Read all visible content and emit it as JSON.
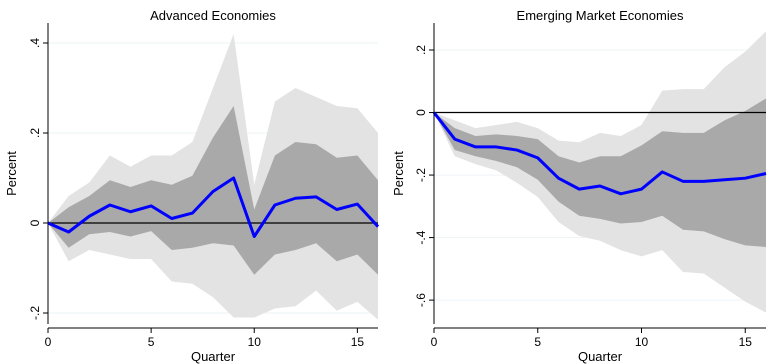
{
  "chart_data": [
    {
      "type": "line",
      "title": "Advanced Economies",
      "xlabel": "Quarter",
      "ylabel": "Percent",
      "xlim": [
        0,
        16
      ],
      "ylim": [
        -0.22,
        0.44
      ],
      "xticks": [
        0,
        5,
        10,
        15
      ],
      "xtick_labels": [
        "0",
        "5",
        "10",
        "15"
      ],
      "yticks": [
        -0.2,
        0,
        0.2,
        0.4
      ],
      "ytick_labels": [
        "-.2",
        "0",
        ".2",
        ".4"
      ],
      "grid": true,
      "x": [
        0,
        1,
        2,
        3,
        4,
        5,
        6,
        7,
        8,
        9,
        10,
        11,
        12,
        13,
        14,
        15,
        16
      ],
      "series": [
        {
          "role": "estimate",
          "color": "#0000ff",
          "values": [
            0,
            -0.02,
            0.015,
            0.04,
            0.025,
            0.038,
            0.01,
            0.022,
            0.07,
            0.1,
            -0.03,
            0.04,
            0.055,
            0.058,
            0.03,
            0.042,
            -0.008
          ]
        },
        {
          "role": "band_inner_upper",
          "color": "#a9a9a9",
          "values": [
            0,
            0.035,
            0.06,
            0.095,
            0.08,
            0.095,
            0.085,
            0.105,
            0.19,
            0.26,
            0.03,
            0.15,
            0.18,
            0.175,
            0.145,
            0.15,
            0.095
          ]
        },
        {
          "role": "band_inner_lower",
          "color": "#a9a9a9",
          "values": [
            0,
            -0.055,
            -0.025,
            -0.02,
            -0.03,
            -0.018,
            -0.06,
            -0.055,
            -0.045,
            -0.05,
            -0.115,
            -0.07,
            -0.06,
            -0.045,
            -0.085,
            -0.07,
            -0.115
          ]
        },
        {
          "role": "band_outer_upper",
          "color": "#e3e3e3",
          "values": [
            0,
            0.06,
            0.09,
            0.15,
            0.125,
            0.15,
            0.15,
            0.18,
            0.3,
            0.42,
            0.085,
            0.27,
            0.3,
            0.28,
            0.26,
            0.255,
            0.2
          ]
        },
        {
          "role": "band_outer_lower",
          "color": "#e3e3e3",
          "values": [
            0,
            -0.085,
            -0.06,
            -0.07,
            -0.08,
            -0.08,
            -0.13,
            -0.135,
            -0.165,
            -0.21,
            -0.21,
            -0.19,
            -0.185,
            -0.15,
            -0.195,
            -0.175,
            -0.215
          ]
        }
      ],
      "zero_line": 0
    },
    {
      "type": "line",
      "title": "Emerging Market Economies",
      "xlabel": "Quarter",
      "ylabel": "Percent",
      "xlim": [
        0,
        16
      ],
      "ylim": [
        -0.67,
        0.28
      ],
      "xticks": [
        0,
        5,
        10,
        15
      ],
      "xtick_labels": [
        "0",
        "5",
        "10",
        "15"
      ],
      "yticks": [
        -0.6,
        -0.4,
        -0.2,
        0,
        0.2
      ],
      "ytick_labels": [
        "-.6",
        "-.4",
        "-.2",
        "0",
        ".2"
      ],
      "grid": true,
      "x": [
        0,
        1,
        2,
        3,
        4,
        5,
        6,
        7,
        8,
        9,
        10,
        11,
        12,
        13,
        14,
        15,
        16
      ],
      "series": [
        {
          "role": "estimate",
          "color": "#0000ff",
          "values": [
            0,
            -0.085,
            -0.11,
            -0.11,
            -0.12,
            -0.145,
            -0.21,
            -0.245,
            -0.235,
            -0.26,
            -0.245,
            -0.19,
            -0.22,
            -0.22,
            -0.215,
            -0.21,
            -0.195
          ]
        },
        {
          "role": "band_inner_upper",
          "color": "#a9a9a9",
          "values": [
            0,
            -0.05,
            -0.075,
            -0.07,
            -0.075,
            -0.085,
            -0.14,
            -0.16,
            -0.14,
            -0.14,
            -0.105,
            -0.06,
            -0.065,
            -0.065,
            -0.025,
            0.005,
            0.045
          ]
        },
        {
          "role": "band_inner_lower",
          "color": "#a9a9a9",
          "values": [
            0,
            -0.12,
            -0.14,
            -0.155,
            -0.175,
            -0.215,
            -0.285,
            -0.33,
            -0.34,
            -0.355,
            -0.35,
            -0.33,
            -0.375,
            -0.38,
            -0.405,
            -0.425,
            -0.43
          ]
        },
        {
          "role": "band_outer_upper",
          "color": "#e3e3e3",
          "values": [
            0,
            -0.025,
            -0.05,
            -0.04,
            -0.03,
            -0.05,
            -0.09,
            -0.095,
            -0.065,
            -0.075,
            -0.04,
            0.07,
            0.075,
            0.075,
            0.145,
            0.195,
            0.26
          ]
        },
        {
          "role": "band_outer_lower",
          "color": "#e3e3e3",
          "values": [
            0,
            -0.14,
            -0.165,
            -0.185,
            -0.225,
            -0.27,
            -0.35,
            -0.395,
            -0.41,
            -0.44,
            -0.46,
            -0.44,
            -0.51,
            -0.515,
            -0.56,
            -0.605,
            -0.64
          ]
        }
      ],
      "zero_line": 0
    }
  ]
}
